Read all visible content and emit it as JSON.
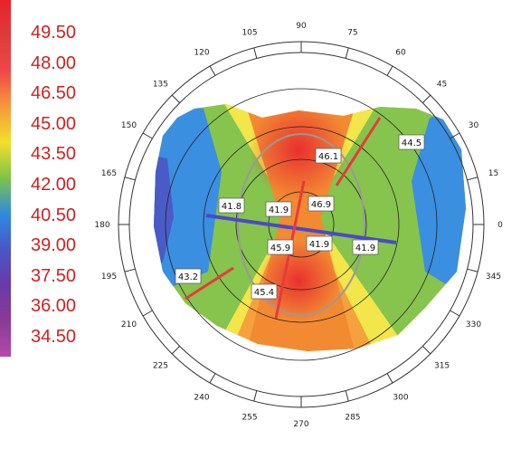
{
  "chart_data": {
    "type": "heatmap",
    "subtype": "polar-topography",
    "colorbar": {
      "labels": [
        "49.50",
        "48.00",
        "46.50",
        "45.00",
        "43.50",
        "42.00",
        "40.50",
        "39.00",
        "37.50",
        "36.00",
        "34.50"
      ],
      "colors": [
        "#e8242a",
        "#e03a3a",
        "#f04848",
        "#f59a3a",
        "#f1e02a",
        "#7cc34a",
        "#2f8be0",
        "#4a55c8",
        "#6a3aa8",
        "#8a3a98",
        "#b24aa8"
      ]
    },
    "angle_ticks": [
      "0",
      "15",
      "30",
      "45",
      "60",
      "75",
      "90",
      "105",
      "120",
      "135",
      "150",
      "165",
      "180",
      "195",
      "210",
      "225",
      "240",
      "255",
      "270",
      "285",
      "300",
      "315",
      "330",
      "345"
    ],
    "annotations": [
      {
        "id": "a1",
        "text": "44.5"
      },
      {
        "id": "a2",
        "text": "46.1"
      },
      {
        "id": "a3",
        "text": "41.8"
      },
      {
        "id": "a4",
        "text": "41.9"
      },
      {
        "id": "a5",
        "text": "46.9"
      },
      {
        "id": "a6",
        "text": "45.9"
      },
      {
        "id": "a7",
        "text": "41.9"
      },
      {
        "id": "a8",
        "text": "41.9"
      },
      {
        "id": "a9",
        "text": "43.2"
      },
      {
        "id": "a10",
        "text": "45.4"
      }
    ],
    "grid": true
  }
}
